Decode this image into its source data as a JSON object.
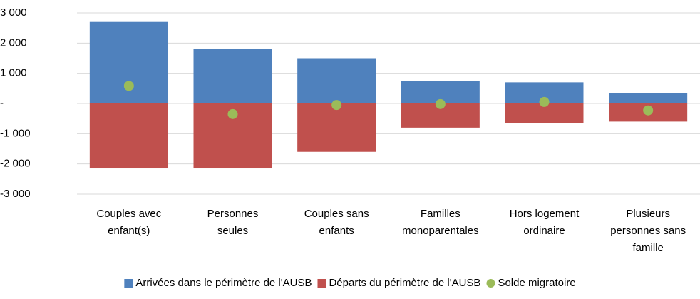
{
  "chart_data": {
    "type": "bar",
    "categories": [
      "Couples avec enfant(s)",
      "Personnes seules",
      "Couples sans enfants",
      "Familles monoparentales",
      "Hors logement ordinaire",
      "Plusieurs personnes sans famille"
    ],
    "series": [
      {
        "name": "Arrivées dans le périmètre de l'AUSB",
        "color": "#4f81bd",
        "type": "bar",
        "values": [
          2700,
          1800,
          1500,
          750,
          700,
          350
        ]
      },
      {
        "name": "Départs du périmètre de l'AUSB",
        "color": "#c0504d",
        "type": "bar",
        "values": [
          -2150,
          -2150,
          -1600,
          -800,
          -650,
          -600
        ]
      },
      {
        "name": "Solde migratoire",
        "color": "#9bbb59",
        "type": "scatter",
        "values": [
          580,
          -350,
          -50,
          -20,
          50,
          -230
        ]
      }
    ],
    "ylim": [
      -3000,
      3000
    ],
    "yticks": [
      {
        "value": -3000,
        "label": "-3 000"
      },
      {
        "value": -2000,
        "label": "-2 000"
      },
      {
        "value": -1000,
        "label": "-1 000"
      },
      {
        "value": 0,
        "label": "-"
      },
      {
        "value": 1000,
        "label": "1 000"
      },
      {
        "value": 2000,
        "label": "2 000"
      },
      {
        "value": 3000,
        "label": "3 000"
      }
    ],
    "grid": true,
    "legend": "bottom"
  }
}
